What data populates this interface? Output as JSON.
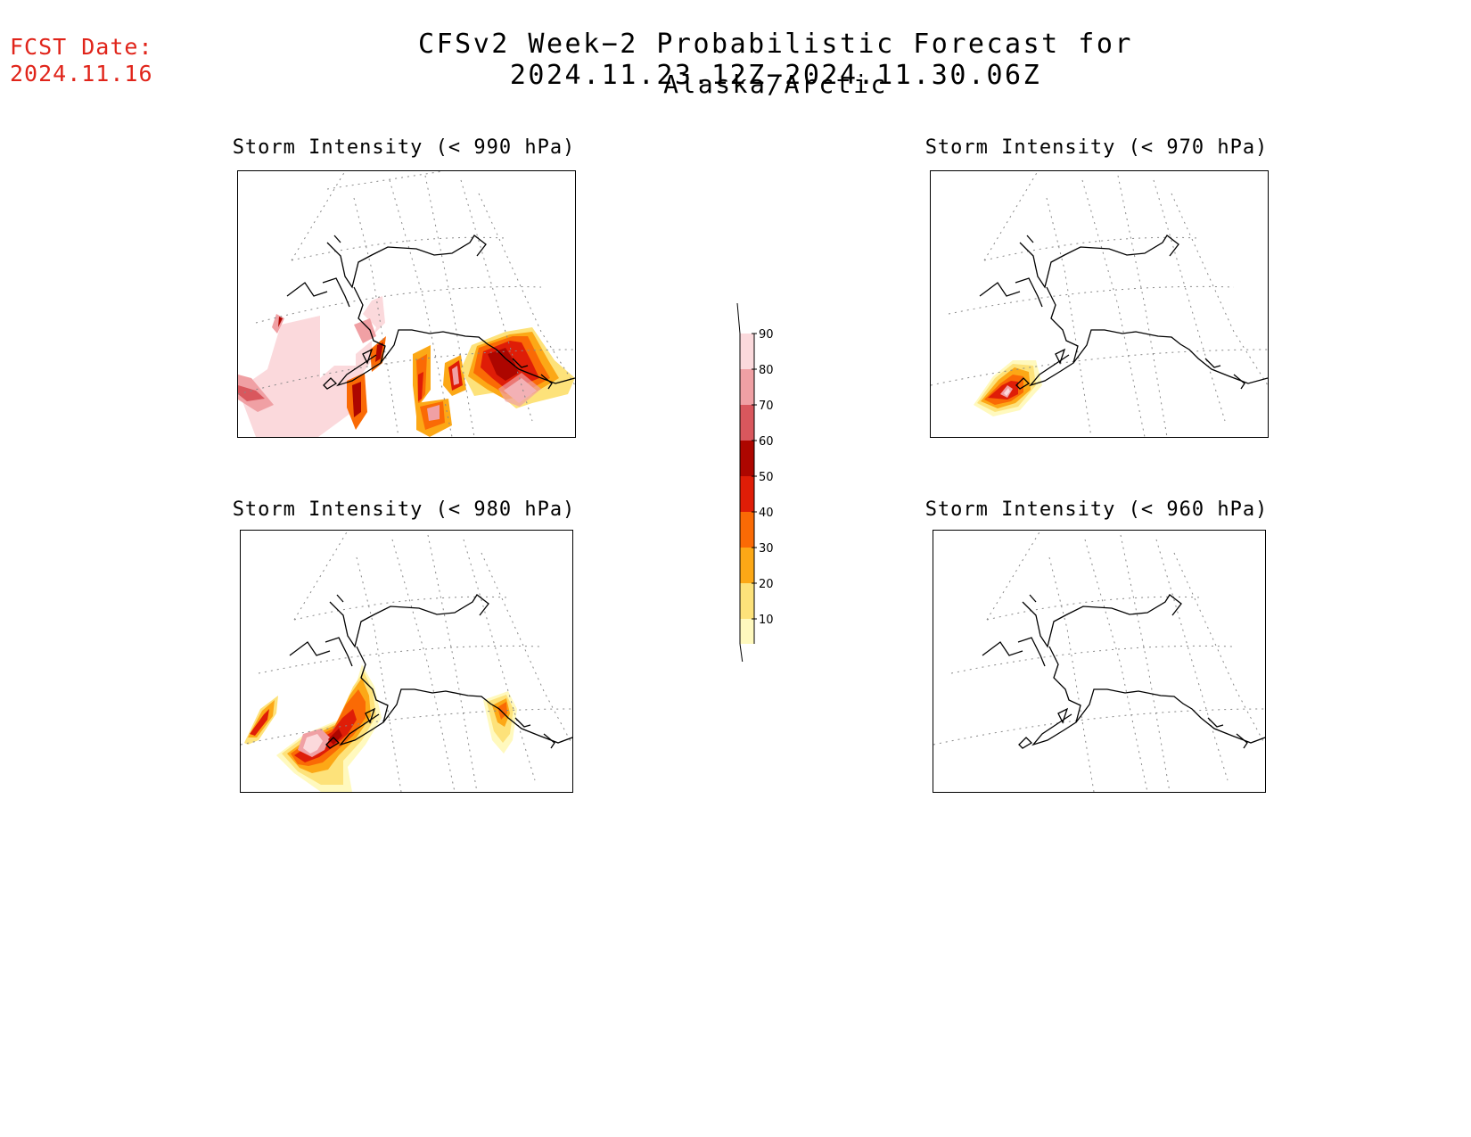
{
  "forecast": {
    "label": "FCST Date:",
    "date": "2024.11.16"
  },
  "title": {
    "main": "CFSv2 Week−2 Probabilistic Forecast for 2024.11.23.12Z−2024.11.30.06Z",
    "region": "Alaska/Arctic"
  },
  "panels": [
    {
      "id": "p990",
      "title": "Storm Intensity (< 990 hPa)"
    },
    {
      "id": "p970",
      "title": "Storm Intensity (< 970 hPa)"
    },
    {
      "id": "p980",
      "title": "Storm Intensity (< 980 hPa)"
    },
    {
      "id": "p960",
      "title": "Storm Intensity (< 960 hPa)"
    }
  ],
  "colorbar": {
    "levels": [
      "10",
      "20",
      "30",
      "40",
      "50",
      "60",
      "70",
      "80",
      "90"
    ],
    "colors": {
      "c10": "#fff9be",
      "c20": "#fde27a",
      "c30": "#fca816",
      "c40": "#fa6a05",
      "c50": "#df1d07",
      "c60": "#ad0600",
      "c70": "#d9575d",
      "c80": "#f0a0a4",
      "c90": "#fbd9dc"
    }
  }
}
